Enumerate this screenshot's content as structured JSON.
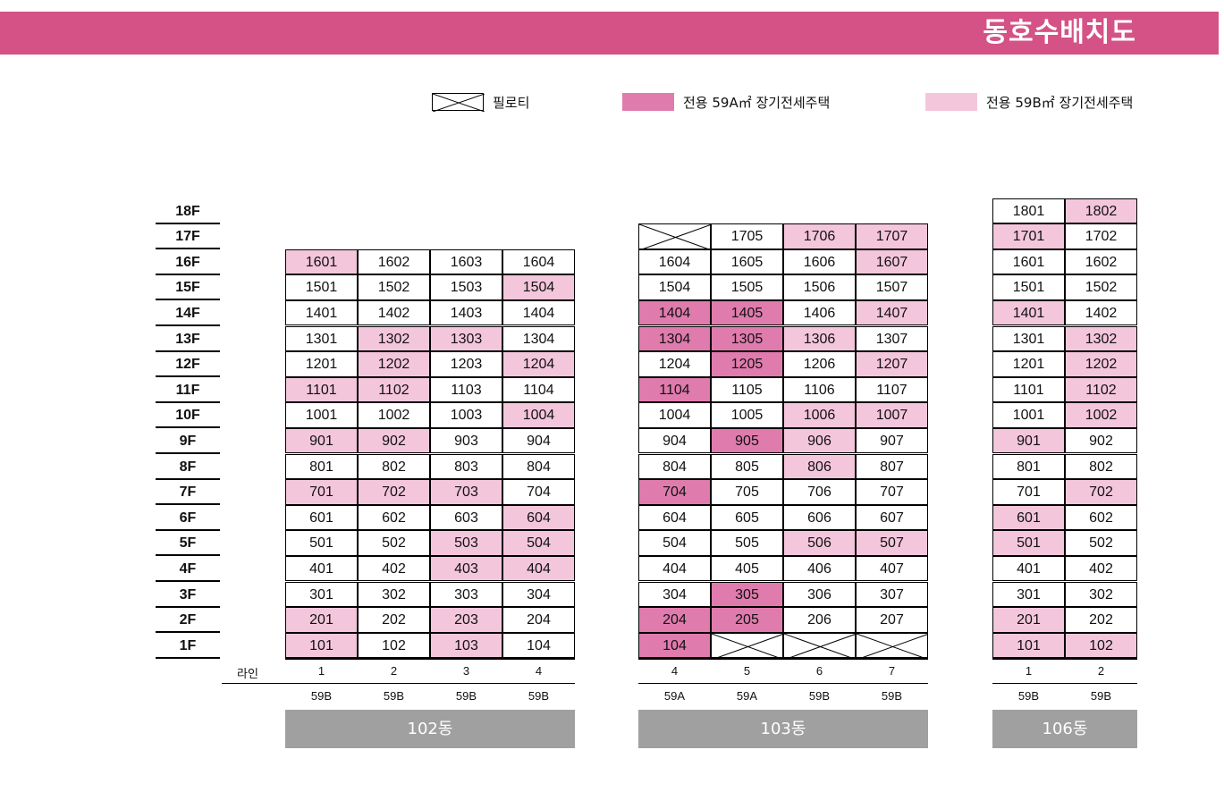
{
  "title": "동호수배치도",
  "legend": {
    "piloti": "필로티",
    "type_a": "전용 59A㎡ 장기전세주택",
    "type_b": "전용 59B㎡ 장기전세주택"
  },
  "colors": {
    "header": "#d45286",
    "type_a": "#e07bae",
    "type_b": "#f4c6dc",
    "building_label": "#a0a0a0"
  },
  "floors": [
    "18F",
    "17F",
    "16F",
    "15F",
    "14F",
    "13F",
    "12F",
    "11F",
    "10F",
    "9F",
    "8F",
    "7F",
    "6F",
    "5F",
    "4F",
    "3F",
    "2F",
    "1F"
  ],
  "line_label": "라인",
  "buildings": [
    {
      "name": "102동",
      "lines": [
        "1",
        "2",
        "3",
        "4"
      ],
      "types": [
        "59B",
        "59B",
        "59B",
        "59B"
      ],
      "rows": [
        [
          [
            "1601",
            "b"
          ],
          [
            "1602",
            ""
          ],
          [
            "1603",
            ""
          ],
          [
            "1604",
            ""
          ]
        ],
        [
          [
            "1501",
            ""
          ],
          [
            "1502",
            ""
          ],
          [
            "1503",
            ""
          ],
          [
            "1504",
            "b"
          ]
        ],
        [
          [
            "1401",
            ""
          ],
          [
            "1402",
            ""
          ],
          [
            "1403",
            ""
          ],
          [
            "1404",
            ""
          ]
        ],
        [
          [
            "1301",
            ""
          ],
          [
            "1302",
            "b"
          ],
          [
            "1303",
            "b"
          ],
          [
            "1304",
            ""
          ]
        ],
        [
          [
            "1201",
            ""
          ],
          [
            "1202",
            "b"
          ],
          [
            "1203",
            ""
          ],
          [
            "1204",
            "b"
          ]
        ],
        [
          [
            "1101",
            "b"
          ],
          [
            "1102",
            "b"
          ],
          [
            "1103",
            ""
          ],
          [
            "1104",
            ""
          ]
        ],
        [
          [
            "1001",
            ""
          ],
          [
            "1002",
            ""
          ],
          [
            "1003",
            ""
          ],
          [
            "1004",
            "b"
          ]
        ],
        [
          [
            "901",
            "b"
          ],
          [
            "902",
            "b"
          ],
          [
            "903",
            ""
          ],
          [
            "904",
            ""
          ]
        ],
        [
          [
            "801",
            ""
          ],
          [
            "802",
            ""
          ],
          [
            "803",
            ""
          ],
          [
            "804",
            ""
          ]
        ],
        [
          [
            "701",
            "b"
          ],
          [
            "702",
            "b"
          ],
          [
            "703",
            "b"
          ],
          [
            "704",
            ""
          ]
        ],
        [
          [
            "601",
            ""
          ],
          [
            "602",
            ""
          ],
          [
            "603",
            ""
          ],
          [
            "604",
            "b"
          ]
        ],
        [
          [
            "501",
            ""
          ],
          [
            "502",
            ""
          ],
          [
            "503",
            "b"
          ],
          [
            "504",
            "b"
          ]
        ],
        [
          [
            "401",
            ""
          ],
          [
            "402",
            ""
          ],
          [
            "403",
            "b"
          ],
          [
            "404",
            "b"
          ]
        ],
        [
          [
            "301",
            ""
          ],
          [
            "302",
            ""
          ],
          [
            "303",
            ""
          ],
          [
            "304",
            ""
          ]
        ],
        [
          [
            "201",
            "b"
          ],
          [
            "202",
            ""
          ],
          [
            "203",
            "b"
          ],
          [
            "204",
            ""
          ]
        ],
        [
          [
            "101",
            "b"
          ],
          [
            "102",
            ""
          ],
          [
            "103",
            "b"
          ],
          [
            "104",
            ""
          ]
        ]
      ]
    },
    {
      "name": "103동",
      "lines": [
        "4",
        "5",
        "6",
        "7"
      ],
      "types": [
        "59A",
        "59A",
        "59B",
        "59B"
      ],
      "rows": [
        [
          [
            "",
            "p"
          ],
          [
            "1705",
            ""
          ],
          [
            "1706",
            "b"
          ],
          [
            "1707",
            "b"
          ]
        ],
        [
          [
            "1604",
            ""
          ],
          [
            "1605",
            ""
          ],
          [
            "1606",
            ""
          ],
          [
            "1607",
            "b"
          ]
        ],
        [
          [
            "1504",
            ""
          ],
          [
            "1505",
            ""
          ],
          [
            "1506",
            ""
          ],
          [
            "1507",
            ""
          ]
        ],
        [
          [
            "1404",
            "a"
          ],
          [
            "1405",
            "a"
          ],
          [
            "1406",
            ""
          ],
          [
            "1407",
            "b"
          ]
        ],
        [
          [
            "1304",
            "a"
          ],
          [
            "1305",
            "a"
          ],
          [
            "1306",
            "b"
          ],
          [
            "1307",
            ""
          ]
        ],
        [
          [
            "1204",
            ""
          ],
          [
            "1205",
            "a"
          ],
          [
            "1206",
            ""
          ],
          [
            "1207",
            "b"
          ]
        ],
        [
          [
            "1104",
            "a"
          ],
          [
            "1105",
            ""
          ],
          [
            "1106",
            ""
          ],
          [
            "1107",
            ""
          ]
        ],
        [
          [
            "1004",
            ""
          ],
          [
            "1005",
            ""
          ],
          [
            "1006",
            "b"
          ],
          [
            "1007",
            "b"
          ]
        ],
        [
          [
            "904",
            ""
          ],
          [
            "905",
            "a"
          ],
          [
            "906",
            "b"
          ],
          [
            "907",
            ""
          ]
        ],
        [
          [
            "804",
            ""
          ],
          [
            "805",
            ""
          ],
          [
            "806",
            "b"
          ],
          [
            "807",
            ""
          ]
        ],
        [
          [
            "704",
            "a"
          ],
          [
            "705",
            ""
          ],
          [
            "706",
            ""
          ],
          [
            "707",
            ""
          ]
        ],
        [
          [
            "604",
            ""
          ],
          [
            "605",
            ""
          ],
          [
            "606",
            ""
          ],
          [
            "607",
            ""
          ]
        ],
        [
          [
            "504",
            ""
          ],
          [
            "505",
            ""
          ],
          [
            "506",
            "b"
          ],
          [
            "507",
            "b"
          ]
        ],
        [
          [
            "404",
            ""
          ],
          [
            "405",
            ""
          ],
          [
            "406",
            ""
          ],
          [
            "407",
            ""
          ]
        ],
        [
          [
            "304",
            ""
          ],
          [
            "305",
            "a"
          ],
          [
            "306",
            ""
          ],
          [
            "307",
            ""
          ]
        ],
        [
          [
            "204",
            "a"
          ],
          [
            "205",
            "a"
          ],
          [
            "206",
            ""
          ],
          [
            "207",
            ""
          ]
        ],
        [
          [
            "104",
            "a"
          ],
          [
            "",
            "p"
          ],
          [
            "",
            "p"
          ],
          [
            "",
            "p"
          ]
        ]
      ]
    },
    {
      "name": "106동",
      "lines": [
        "1",
        "2"
      ],
      "types": [
        "59B",
        "59B"
      ],
      "rows": [
        [
          [
            "1801",
            ""
          ],
          [
            "1802",
            "b"
          ]
        ],
        [
          [
            "1701",
            "b"
          ],
          [
            "1702",
            ""
          ]
        ],
        [
          [
            "1601",
            ""
          ],
          [
            "1602",
            ""
          ]
        ],
        [
          [
            "1501",
            ""
          ],
          [
            "1502",
            ""
          ]
        ],
        [
          [
            "1401",
            "b"
          ],
          [
            "1402",
            ""
          ]
        ],
        [
          [
            "1301",
            ""
          ],
          [
            "1302",
            "b"
          ]
        ],
        [
          [
            "1201",
            ""
          ],
          [
            "1202",
            "b"
          ]
        ],
        [
          [
            "1101",
            ""
          ],
          [
            "1102",
            "b"
          ]
        ],
        [
          [
            "1001",
            ""
          ],
          [
            "1002",
            "b"
          ]
        ],
        [
          [
            "901",
            "b"
          ],
          [
            "902",
            ""
          ]
        ],
        [
          [
            "801",
            ""
          ],
          [
            "802",
            ""
          ]
        ],
        [
          [
            "701",
            ""
          ],
          [
            "702",
            "b"
          ]
        ],
        [
          [
            "601",
            "b"
          ],
          [
            "602",
            ""
          ]
        ],
        [
          [
            "501",
            "b"
          ],
          [
            "502",
            ""
          ]
        ],
        [
          [
            "401",
            ""
          ],
          [
            "402",
            ""
          ]
        ],
        [
          [
            "301",
            ""
          ],
          [
            "302",
            ""
          ]
        ],
        [
          [
            "201",
            "b"
          ],
          [
            "202",
            ""
          ]
        ],
        [
          [
            "101",
            "b"
          ],
          [
            "102",
            "b"
          ]
        ]
      ]
    }
  ]
}
